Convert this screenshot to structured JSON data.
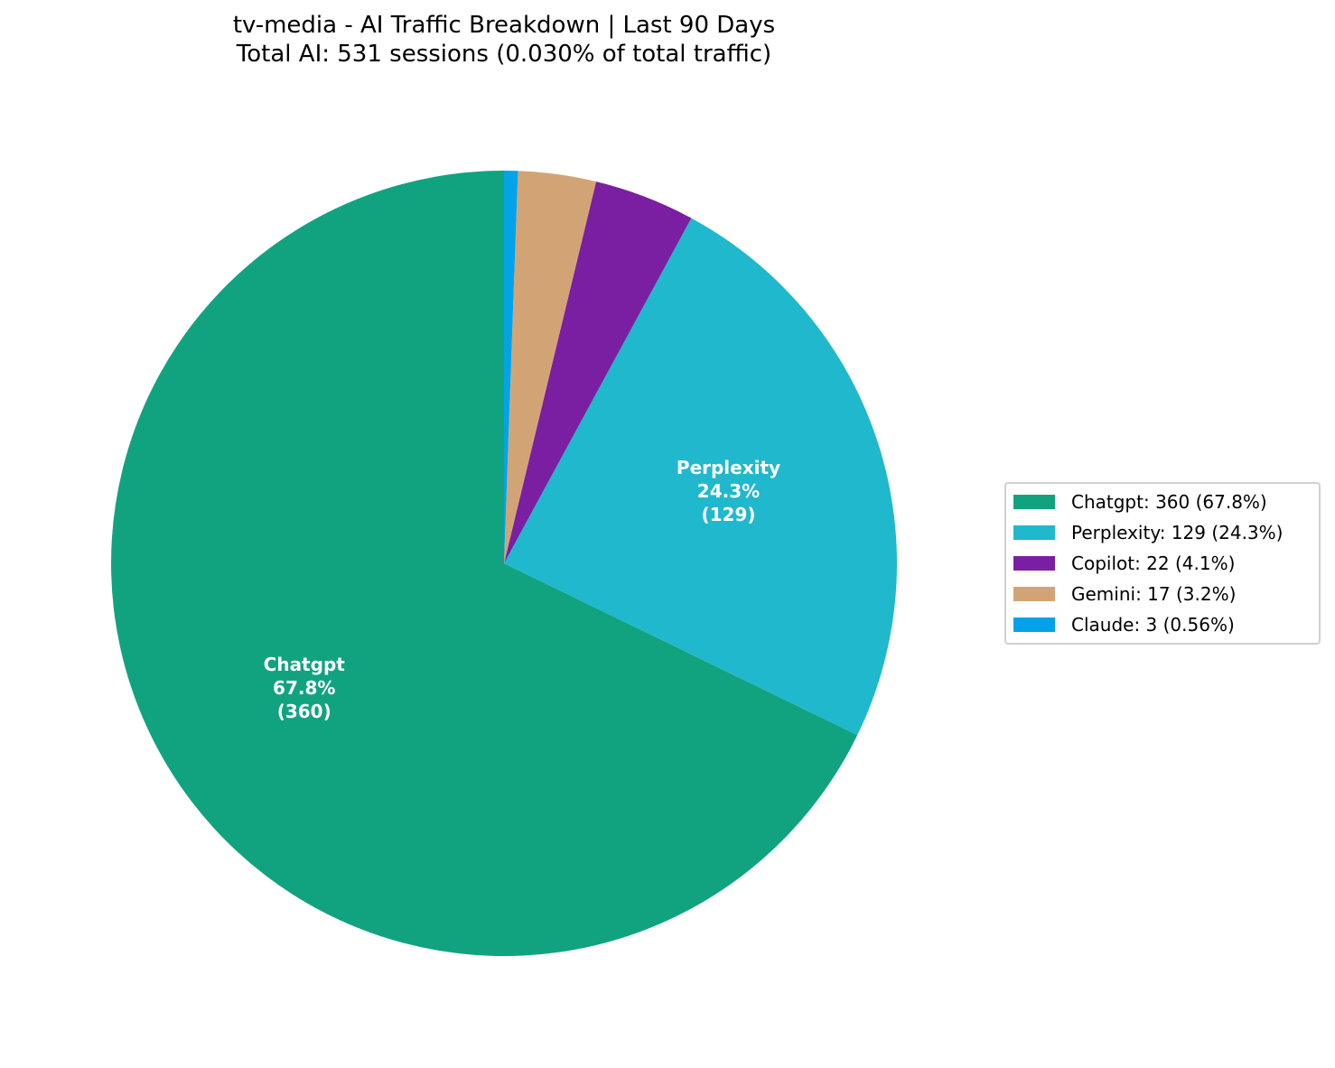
{
  "title": {
    "line1": "tv-media - AI Traffic Breakdown | Last 90 Days",
    "line2": "Total AI: 531 sessions (0.030% of total traffic)"
  },
  "chart_data": {
    "type": "pie",
    "title": "tv-media - AI Traffic Breakdown | Last 90 Days",
    "subtitle": "Total AI: 531 sessions (0.030% of total traffic)",
    "total": 531,
    "start_angle_deg": 90,
    "direction": "clockwise",
    "legend_position": "right",
    "slices": [
      {
        "name": "Chatgpt",
        "value": 360,
        "percent": "67.8%",
        "color": "#11a37f",
        "legend": "Chatgpt: 360 (67.8%)",
        "inner_label": [
          "Chatgpt",
          "67.8%",
          "(360)"
        ]
      },
      {
        "name": "Perplexity",
        "value": 129,
        "percent": "24.3%",
        "color": "#20b8cd",
        "legend": "Perplexity: 129 (24.3%)",
        "inner_label": [
          "Perplexity",
          "24.3%",
          "(129)"
        ]
      },
      {
        "name": "Copilot",
        "value": 22,
        "percent": "4.1%",
        "color": "#7a1fa2",
        "legend": "Copilot: 22 (4.1%)",
        "inner_label": null
      },
      {
        "name": "Gemini",
        "value": 17,
        "percent": "3.2%",
        "color": "#d2a475",
        "legend": "Gemini: 17 (3.2%)",
        "inner_label": null
      },
      {
        "name": "Claude",
        "value": 3,
        "percent": "0.56%",
        "color": "#03a3ea",
        "legend": "Claude: 3 (0.56%)",
        "inner_label": null
      }
    ]
  }
}
